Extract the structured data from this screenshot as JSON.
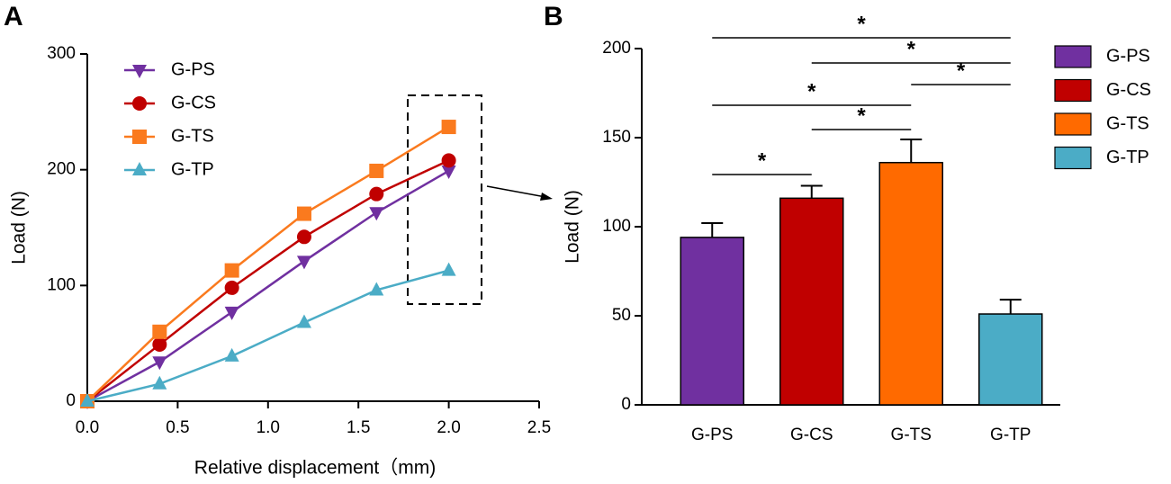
{
  "chart_data": [
    {
      "type": "line",
      "panel": "A",
      "xlabel": "Relative displacement（mm)",
      "ylabel": "Load (N)",
      "x": [
        0,
        0.4,
        0.8,
        1.2,
        1.6,
        2.0
      ],
      "xlim": [
        0,
        2.5
      ],
      "xticks": [
        {
          "value": 0,
          "label": "0.0"
        },
        0.5,
        {
          "value": 1,
          "label": "1.0"
        },
        1.5,
        {
          "value": 2,
          "label": "2.0"
        },
        2.5
      ],
      "ylim": [
        0,
        300
      ],
      "yticks": [
        0,
        100,
        200,
        300
      ],
      "series": [
        {
          "name": "G-PS",
          "color": "#7030a0",
          "marker": "triangle-down",
          "values": [
            0,
            34,
            77,
            121,
            163,
            199
          ]
        },
        {
          "name": "G-CS",
          "color": "#c00000",
          "marker": "circle",
          "values": [
            0,
            49,
            98,
            142,
            179,
            208
          ]
        },
        {
          "name": "G-TS",
          "color": "#fa7a1e",
          "marker": "square",
          "values": [
            0,
            60,
            113,
            162,
            199,
            237
          ]
        },
        {
          "name": "G-TP",
          "color": "#4bacc6",
          "marker": "triangle-up",
          "values": [
            0,
            15,
            39,
            68,
            96,
            113
          ]
        }
      ]
    },
    {
      "type": "bar",
      "panel": "B",
      "ylabel": "Load (N)",
      "categories": [
        "G-PS",
        "G-CS",
        "G-TS",
        "G-TP"
      ],
      "values": [
        94,
        116,
        136,
        51
      ],
      "errors": [
        8,
        7,
        13,
        8
      ],
      "colors": [
        "#7030a0",
        "#c00000",
        "#ff6a00",
        "#4bacc6"
      ],
      "ylim": [
        0,
        200
      ],
      "yticks": [
        0,
        50,
        100,
        150,
        200
      ],
      "significance": [
        {
          "between": [
            "G-PS",
            "G-TP"
          ],
          "label": "*"
        },
        {
          "between": [
            "G-CS",
            "G-TP"
          ],
          "label": "*"
        },
        {
          "between": [
            "G-TS",
            "G-TP"
          ],
          "label": "*"
        },
        {
          "between": [
            "G-PS",
            "G-TS"
          ],
          "label": "*"
        },
        {
          "between": [
            "G-CS",
            "G-TS"
          ],
          "label": "*"
        },
        {
          "between": [
            "G-PS",
            "G-CS"
          ],
          "label": "*"
        }
      ]
    }
  ]
}
